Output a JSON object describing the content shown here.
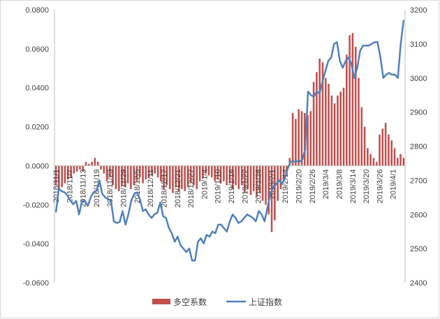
{
  "chart_data": {
    "type": "bar+line",
    "title": "",
    "xlabel": "",
    "y_left": {
      "ticks": [
        "0.0800",
        "0.0600",
        "0.0400",
        "0.0200",
        "0.0000",
        "-0.0200",
        "-0.0400",
        "-0.0600"
      ],
      "ylim": [
        -0.06,
        0.08
      ]
    },
    "y_right": {
      "ticks": [
        "3200",
        "3100",
        "3000",
        "2900",
        "2800",
        "2700",
        "2600",
        "2500",
        "2400"
      ],
      "ylim": [
        2400,
        3200
      ]
    },
    "x_tick_labels": [
      "2018/11/1",
      "2018/11/7",
      "2018/11/13",
      "2018/11/19",
      "2018/11/23",
      "2018/11/29",
      "2018/12/5",
      "2018/12/11",
      "2018/12/17",
      "2018/12/21",
      "2018/12/27",
      "2019/1/4",
      "2019/1/10",
      "2019/1/16",
      "2019/1/22",
      "2019/1/28",
      "2019/2/1",
      "2019/2/14",
      "2019/2/20",
      "2019/2/26",
      "2019/3/4",
      "2019/3/8",
      "2019/3/14",
      "2019/3/20",
      "2019/3/26",
      "2019/4/1"
    ],
    "legend": {
      "position": "bottom",
      "items": [
        "多空系数",
        "上证指数"
      ]
    },
    "series": [
      {
        "name": "多空系数",
        "type": "bar",
        "axis": "left",
        "color": "#c0504d",
        "values": [
          -0.01,
          -0.012,
          -0.011,
          -0.009,
          -0.007,
          -0.006,
          -0.004,
          -0.003,
          -0.002,
          -0.003,
          0.002,
          0.001,
          0.002,
          0.004,
          0.002,
          -0.002,
          -0.004,
          -0.008,
          -0.006,
          -0.01,
          -0.012,
          -0.013,
          -0.01,
          -0.011,
          -0.009,
          -0.012,
          -0.01,
          -0.008,
          -0.006,
          -0.009,
          -0.007,
          -0.006,
          -0.005,
          -0.004,
          -0.006,
          -0.008,
          -0.012,
          -0.01,
          -0.012,
          -0.014,
          -0.011,
          -0.013,
          -0.012,
          -0.013,
          -0.011,
          -0.009,
          -0.01,
          -0.012,
          -0.008,
          -0.006,
          -0.004,
          -0.005,
          -0.006,
          -0.008,
          -0.007,
          -0.009,
          -0.008,
          -0.01,
          -0.009,
          -0.012,
          -0.01,
          -0.012,
          -0.01,
          -0.014,
          -0.012,
          -0.015,
          -0.013,
          -0.016,
          -0.014,
          -0.018,
          -0.02,
          -0.025,
          -0.034,
          -0.028,
          -0.018,
          -0.012,
          -0.008,
          -0.004,
          0.004,
          0.027,
          0.024,
          0.029,
          0.028,
          0.027,
          0.026,
          0.028,
          0.043,
          0.048,
          0.055,
          0.053,
          0.045,
          0.042,
          0.036,
          0.032,
          0.036,
          0.038,
          0.04,
          0.057,
          0.067,
          0.068,
          0.061,
          0.045,
          0.03,
          0.02,
          0.009,
          0.006,
          0.004,
          0.002,
          0.016,
          0.019,
          0.022,
          0.016,
          0.013,
          0.009,
          0.004,
          0.006,
          0.004
        ]
      },
      {
        "name": "上证指数",
        "type": "line",
        "axis": "right",
        "color": "#4f81bd",
        "values": [
          2606,
          2675,
          2668,
          2665,
          2655,
          2640,
          2630,
          2640,
          2600,
          2640,
          2640,
          2625,
          2650,
          2665,
          2670,
          2700,
          2660,
          2650,
          2645,
          2640,
          2580,
          2575,
          2578,
          2610,
          2570,
          2600,
          2640,
          2660,
          2665,
          2645,
          2610,
          2615,
          2600,
          2590,
          2600,
          2605,
          2635,
          2595,
          2590,
          2560,
          2545,
          2520,
          2535,
          2510,
          2500,
          2490,
          2500,
          2465,
          2465,
          2520,
          2530,
          2515,
          2540,
          2535,
          2550,
          2545,
          2570,
          2570,
          2560,
          2550,
          2580,
          2600,
          2590,
          2575,
          2580,
          2590,
          2600,
          2595,
          2590,
          2580,
          2610,
          2600,
          2580,
          2620,
          2660,
          2680,
          2690,
          2700,
          2690,
          2705,
          2735,
          2755,
          2755,
          2756,
          2755,
          2760,
          2790,
          2960,
          2950,
          2945,
          2960,
          2955,
          2990,
          3020,
          3050,
          3060,
          3100,
          3105,
          3050,
          3030,
          3050,
          3060,
          3040,
          3000,
          3030,
          3080,
          3095,
          3095,
          3095,
          3100,
          3105,
          3105,
          3060,
          3000,
          3010,
          3015,
          3010,
          3010,
          3000,
          3100,
          3170
        ]
      }
    ]
  }
}
